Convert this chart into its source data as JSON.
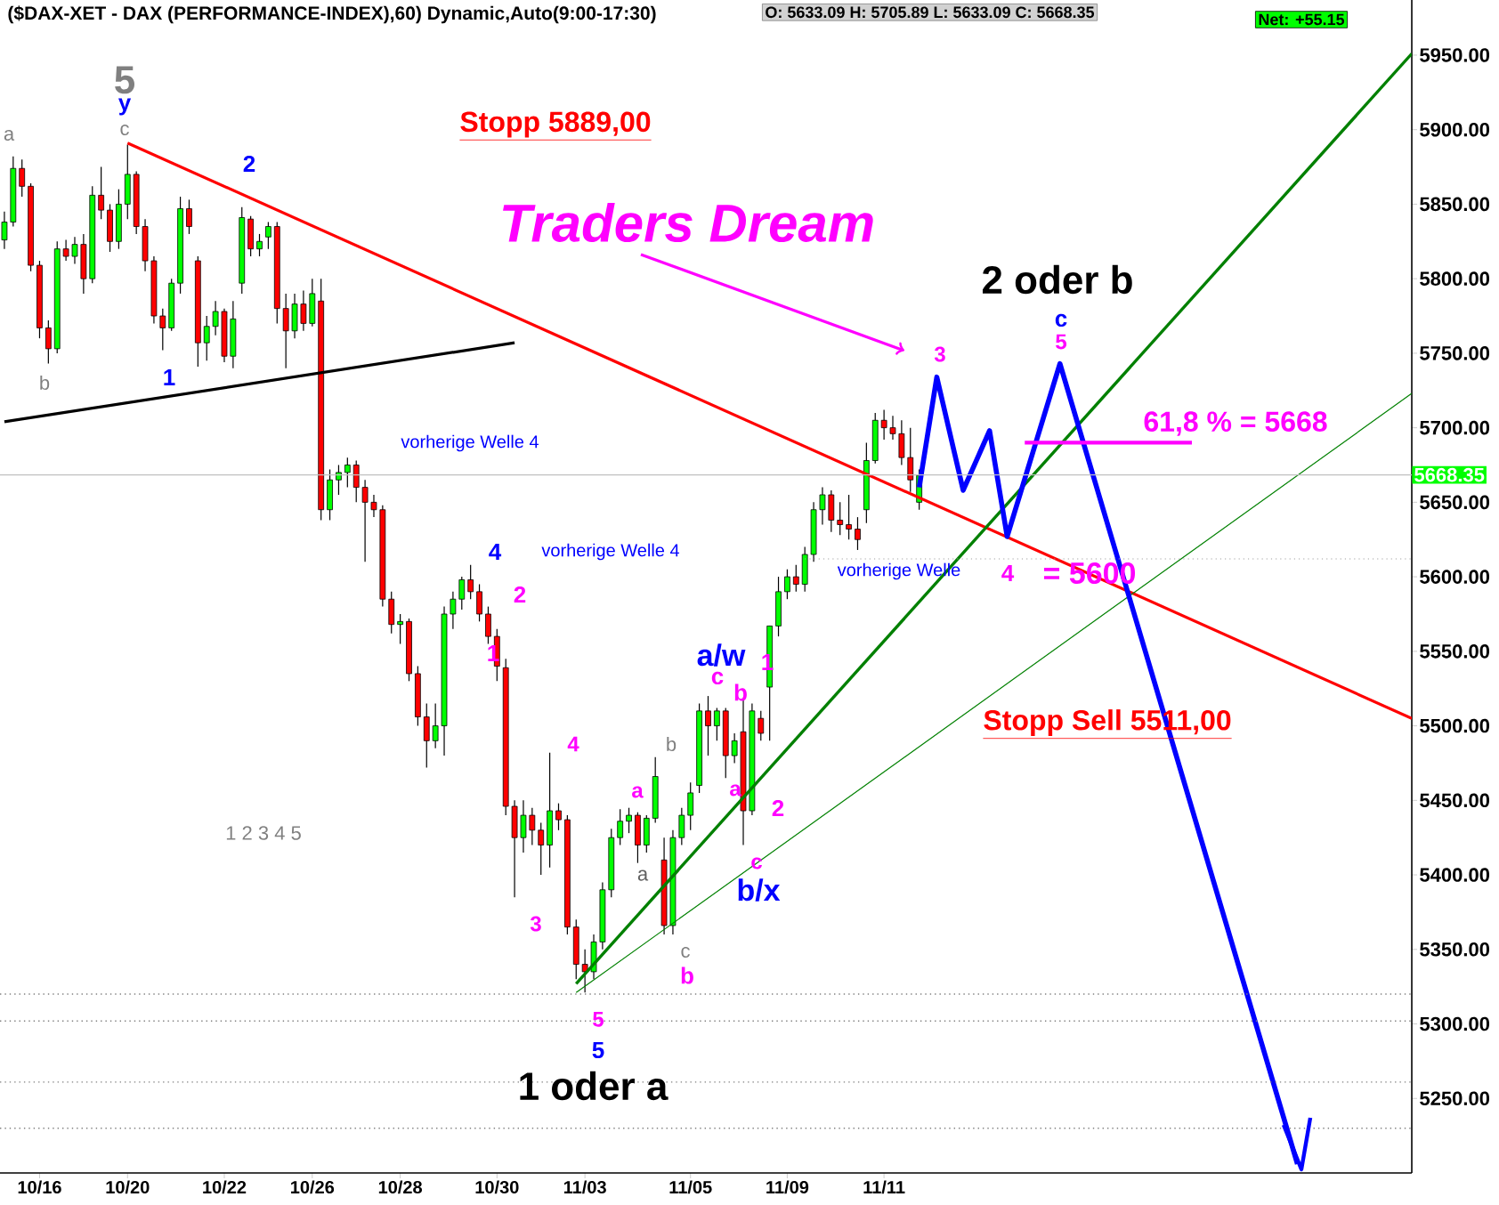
{
  "chart_data": {
    "type": "candlestick",
    "title": "($DAX-XET - DAX (PERFORMANCE-INDEX),60) Dynamic,Auto(9:00-17:30)",
    "subtitle": "O: 5633.09   H: 5705.89   L: 5633.09   C: 5668.35",
    "categories": [
      null,
      null,
      null,
      null,
      "10/16",
      null,
      null,
      null,
      null,
      null,
      null,
      null,
      null,
      null,
      "10/20",
      null,
      null,
      null,
      null,
      null,
      null,
      null,
      null,
      null,
      null,
      "10/22",
      null,
      null,
      null,
      null,
      null,
      null,
      null,
      null,
      null,
      "10/26",
      null,
      null,
      null,
      null,
      null,
      null,
      null,
      null,
      null,
      "10/28",
      null,
      null,
      null,
      null,
      null,
      null,
      null,
      null,
      null,
      null,
      "10/30",
      null,
      null,
      null,
      null,
      null,
      null,
      null,
      null,
      null,
      "11/03",
      null,
      null,
      null,
      null,
      null,
      null,
      null,
      null,
      null,
      null,
      null,
      "11/05",
      null,
      null,
      null,
      null,
      null,
      null,
      null,
      null,
      null,
      null,
      "11/09",
      null,
      null,
      null,
      null,
      null,
      null,
      null,
      null,
      null,
      null,
      "11/11",
      null,
      null,
      null,
      null,
      null,
      null,
      null,
      null,
      null,
      null,
      null,
      null,
      null,
      null,
      null,
      null,
      null,
      null,
      null,
      null,
      null,
      null,
      null,
      null,
      null,
      null,
      null,
      null,
      null,
      null,
      null,
      null,
      null,
      null,
      null,
      null,
      null,
      null,
      null,
      null,
      null,
      null,
      null,
      null,
      null,
      null,
      null,
      null,
      null,
      null,
      null,
      null,
      null,
      null,
      null,
      null,
      null,
      null,
      null,
      null
    ],
    "ohlc": [
      [
        5826,
        5845,
        5820,
        5838
      ],
      [
        5838,
        5882,
        5835,
        5874
      ],
      [
        5874,
        5880,
        5855,
        5862
      ],
      [
        5862,
        5864,
        5805,
        5809
      ],
      [
        5809,
        5812,
        5760,
        5767
      ],
      [
        5767,
        5772,
        5743,
        5753
      ],
      [
        5753,
        5825,
        5750,
        5820
      ],
      [
        5820,
        5826,
        5812,
        5815
      ],
      [
        5815,
        5828,
        5810,
        5823
      ],
      [
        5823,
        5830,
        5790,
        5800
      ],
      [
        5800,
        5862,
        5797,
        5856
      ],
      [
        5856,
        5875,
        5840,
        5846
      ],
      [
        5846,
        5850,
        5818,
        5825
      ],
      [
        5825,
        5860,
        5820,
        5850
      ],
      [
        5850,
        5890,
        5840,
        5870
      ],
      [
        5870,
        5872,
        5830,
        5835
      ],
      [
        5835,
        5840,
        5805,
        5812
      ],
      [
        5812,
        5815,
        5770,
        5775
      ],
      [
        5775,
        5780,
        5752,
        5767
      ],
      [
        5767,
        5800,
        5765,
        5797
      ],
      [
        5797,
        5855,
        5790,
        5847
      ],
      [
        5847,
        5853,
        5830,
        5835
      ],
      [
        5812,
        5815,
        5741,
        5757
      ],
      [
        5757,
        5775,
        5745,
        5768
      ],
      [
        5768,
        5785,
        5762,
        5778
      ],
      [
        5778,
        5780,
        5744,
        5748
      ],
      [
        5748,
        5785,
        5740,
        5773
      ],
      [
        5797,
        5848,
        5790,
        5841
      ],
      [
        5840,
        5842,
        5815,
        5820
      ],
      [
        5820,
        5830,
        5815,
        5825
      ],
      [
        5828,
        5838,
        5820,
        5835
      ],
      [
        5835,
        5838,
        5770,
        5780
      ],
      [
        5780,
        5790,
        5740,
        5765
      ],
      [
        5765,
        5790,
        5760,
        5783
      ],
      [
        5783,
        5792,
        5765,
        5770
      ],
      [
        5770,
        5800,
        5768,
        5790
      ],
      [
        5785,
        5800,
        5638,
        5645
      ],
      [
        5645,
        5672,
        5638,
        5665
      ],
      [
        5665,
        5675,
        5655,
        5670
      ],
      [
        5670,
        5680,
        5660,
        5675
      ],
      [
        5675,
        5678,
        5650,
        5660
      ],
      [
        5660,
        5665,
        5610,
        5650
      ],
      [
        5650,
        5655,
        5640,
        5645
      ],
      [
        5645,
        5648,
        5580,
        5585
      ],
      [
        5585,
        5590,
        5562,
        5568
      ],
      [
        5568,
        5575,
        5555,
        5570
      ],
      [
        5570,
        5572,
        5530,
        5535
      ],
      [
        5535,
        5540,
        5500,
        5506
      ],
      [
        5506,
        5515,
        5472,
        5490
      ],
      [
        5490,
        5515,
        5485,
        5500
      ],
      [
        5500,
        5580,
        5480,
        5575
      ],
      [
        5575,
        5590,
        5565,
        5585
      ],
      [
        5585,
        5600,
        5578,
        5598
      ],
      [
        5598,
        5608,
        5585,
        5590
      ],
      [
        5590,
        5595,
        5570,
        5575
      ],
      [
        5575,
        5580,
        5555,
        5560
      ],
      [
        5560,
        5565,
        5530,
        5540
      ],
      [
        5539,
        5545,
        5440,
        5446
      ],
      [
        5446,
        5450,
        5385,
        5425
      ],
      [
        5425,
        5450,
        5415,
        5440
      ],
      [
        5440,
        5445,
        5420,
        5430
      ],
      [
        5430,
        5435,
        5400,
        5420
      ],
      [
        5420,
        5482,
        5405,
        5443
      ],
      [
        5443,
        5448,
        5430,
        5437
      ],
      [
        5437,
        5440,
        5360,
        5365
      ],
      [
        5365,
        5370,
        5330,
        5340
      ],
      [
        5340,
        5350,
        5321,
        5335
      ],
      [
        5335,
        5360,
        5330,
        5355
      ],
      [
        5355,
        5395,
        5350,
        5390
      ],
      [
        5390,
        5431,
        5385,
        5425
      ],
      [
        5425,
        5444,
        5420,
        5436
      ],
      [
        5436,
        5445,
        5428,
        5440
      ],
      [
        5440,
        5442,
        5408,
        5420
      ],
      [
        5420,
        5440,
        5415,
        5438
      ],
      [
        5438,
        5479,
        5435,
        5466
      ],
      [
        5410,
        5425,
        5360,
        5366
      ],
      [
        5366,
        5430,
        5360,
        5425
      ],
      [
        5425,
        5445,
        5420,
        5440
      ],
      [
        5440,
        5462,
        5430,
        5455
      ],
      [
        5460,
        5515,
        5455,
        5510
      ],
      [
        5510,
        5520,
        5480,
        5500
      ],
      [
        5500,
        5512,
        5490,
        5510
      ],
      [
        5510,
        5512,
        5465,
        5480
      ],
      [
        5480,
        5495,
        5475,
        5490
      ],
      [
        5496,
        5517,
        5420,
        5443
      ],
      [
        5443,
        5515,
        5440,
        5510
      ],
      [
        5505,
        5510,
        5490,
        5495
      ],
      [
        5526,
        5567,
        5490,
        5567
      ],
      [
        5567,
        5600,
        5560,
        5590
      ],
      [
        5590,
        5605,
        5585,
        5600
      ],
      [
        5600,
        5608,
        5590,
        5595
      ],
      [
        5595,
        5620,
        5590,
        5615
      ],
      [
        5615,
        5650,
        5610,
        5645
      ],
      [
        5645,
        5660,
        5635,
        5655
      ],
      [
        5655,
        5658,
        5630,
        5638
      ],
      [
        5638,
        5650,
        5628,
        5635
      ],
      [
        5635,
        5655,
        5625,
        5632
      ],
      [
        5632,
        5640,
        5618,
        5625
      ],
      [
        5645,
        5690,
        5636,
        5678
      ],
      [
        5678,
        5710,
        5676,
        5705
      ],
      [
        5705,
        5712,
        5692,
        5700
      ],
      [
        5700,
        5708,
        5692,
        5696
      ],
      [
        5696,
        5705,
        5675,
        5680
      ],
      [
        5680,
        5700,
        5657,
        5665
      ],
      [
        5650,
        5672,
        5645,
        5668
      ],
      null,
      null,
      null,
      null,
      null,
      null,
      null,
      null,
      null,
      null,
      null,
      null,
      null,
      null,
      null,
      null,
      null,
      null,
      null,
      null,
      null,
      null,
      null,
      null,
      null,
      null,
      null,
      null,
      null,
      null,
      null,
      null,
      null,
      null,
      null,
      null,
      null,
      null,
      null,
      null,
      null,
      null,
      null,
      null,
      null,
      null,
      null,
      null,
      null,
      null,
      null,
      null,
      null,
      null,
      null,
      null
    ],
    "series": [
      {
        "type": "line",
        "color": "#ff0000",
        "values": [
          null,
          null,
          null,
          null,
          null,
          null,
          null,
          null,
          null,
          null,
          null,
          null,
          null,
          null,
          5891,
          null,
          null,
          null,
          null,
          null,
          null,
          null,
          null,
          null,
          null,
          null,
          null,
          null,
          null,
          null,
          null,
          null,
          null,
          null,
          null,
          null,
          null,
          null,
          null,
          null,
          null,
          null,
          null,
          null,
          null,
          null,
          null,
          null,
          null,
          null,
          null,
          null,
          null,
          null,
          null,
          null,
          null,
          null,
          null,
          null,
          null,
          null,
          null,
          null,
          null,
          null,
          null,
          null,
          null,
          null,
          null,
          null,
          null,
          null,
          null,
          null,
          null,
          null,
          null,
          null,
          null,
          null,
          null,
          null,
          null,
          null,
          null,
          null,
          null,
          null,
          null,
          null,
          null,
          null,
          null,
          null,
          null,
          null,
          null,
          null,
          null,
          null,
          null,
          null,
          null,
          null,
          null,
          null,
          null,
          null,
          null,
          null,
          null,
          null,
          null,
          null,
          null,
          null,
          null,
          null,
          null,
          null,
          null,
          null,
          null,
          null,
          null,
          null,
          null,
          null,
          null,
          null,
          null,
          null,
          null,
          null,
          null,
          null,
          null,
          null,
          null,
          null,
          null,
          null,
          null,
          null,
          null,
          null,
          null,
          null,
          null,
          null,
          null,
          null,
          null,
          null,
          null,
          null,
          null,
          null,
          5505
        ]
      },
      {
        "type": "line",
        "color": "#000000",
        "values": [
          5704,
          null,
          null,
          null,
          null,
          null,
          null,
          null,
          null,
          null,
          null,
          null,
          null,
          null,
          null,
          null,
          null,
          null,
          null,
          null,
          null,
          null,
          null,
          null,
          null,
          null,
          null,
          null,
          null,
          null,
          null,
          null,
          null,
          null,
          null,
          null,
          null,
          null,
          null,
          null,
          null,
          null,
          null,
          null,
          null,
          null,
          null,
          null,
          null,
          null,
          null,
          null,
          null,
          null,
          null,
          null,
          null,
          null,
          5757,
          null,
          null,
          null,
          null,
          null,
          null,
          null,
          null,
          null,
          null,
          null,
          null,
          null,
          null,
          null,
          null,
          null,
          null,
          null,
          null,
          null,
          null,
          null,
          null,
          null,
          null,
          null,
          null,
          null,
          null,
          null,
          null,
          null,
          null,
          null,
          null,
          null,
          null,
          null,
          null,
          null,
          null,
          null,
          null,
          null,
          null,
          null,
          null,
          null,
          null,
          null,
          null,
          null,
          null,
          null,
          null,
          null,
          null,
          null,
          null,
          null,
          null,
          null,
          null,
          null,
          null,
          null,
          null,
          null,
          null,
          null,
          null,
          null,
          null,
          null,
          null,
          null,
          null,
          null,
          null,
          null,
          null,
          null,
          null,
          null,
          null,
          null,
          null,
          null,
          null,
          null,
          null,
          null,
          null,
          null,
          null,
          null,
          null,
          null,
          null,
          null,
          null
        ]
      },
      {
        "type": "line",
        "color": "#008000",
        "values": [
          null,
          null,
          null,
          null,
          null,
          null,
          null,
          null,
          null,
          null,
          null,
          null,
          null,
          null,
          null,
          null,
          null,
          null,
          null,
          null,
          null,
          null,
          null,
          null,
          null,
          null,
          null,
          null,
          null,
          null,
          null,
          null,
          null,
          null,
          null,
          null,
          null,
          null,
          null,
          null,
          null,
          null,
          null,
          null,
          null,
          null,
          null,
          null,
          null,
          null,
          null,
          null,
          null,
          null,
          null,
          null,
          null,
          null,
          null,
          null,
          null,
          null,
          null,
          null,
          null,
          5327,
          null,
          null,
          null,
          null,
          null,
          null,
          null,
          null,
          null,
          null,
          null,
          null,
          null,
          null,
          null,
          null,
          null,
          null,
          null,
          null,
          null,
          null,
          null,
          null,
          null,
          null,
          null,
          null,
          null,
          null,
          null,
          null,
          null,
          null,
          null,
          null,
          null,
          null,
          null,
          null,
          null,
          null,
          null,
          null,
          null,
          null,
          null,
          null,
          null,
          null,
          null,
          null,
          null,
          null,
          null,
          null,
          null,
          null,
          null,
          null,
          null,
          null,
          null,
          null,
          null,
          null,
          null,
          null,
          null,
          null,
          null,
          null,
          null,
          null,
          null,
          null,
          null,
          null,
          null,
          null,
          null,
          null,
          null,
          null,
          null,
          null,
          null,
          null,
          null,
          null,
          null,
          null,
          null,
          null,
          5951
        ]
      },
      {
        "type": "line",
        "color": "#008000",
        "values": [
          null,
          null,
          null,
          null,
          null,
          null,
          null,
          null,
          null,
          null,
          null,
          null,
          null,
          null,
          null,
          null,
          null,
          null,
          null,
          null,
          null,
          null,
          null,
          null,
          null,
          null,
          null,
          null,
          null,
          null,
          null,
          null,
          null,
          null,
          null,
          null,
          null,
          null,
          null,
          null,
          null,
          null,
          null,
          null,
          null,
          null,
          null,
          null,
          null,
          null,
          null,
          null,
          null,
          null,
          null,
          null,
          null,
          null,
          null,
          null,
          null,
          null,
          null,
          null,
          null,
          5321,
          null,
          null,
          null,
          null,
          null,
          null,
          null,
          null,
          null,
          null,
          null,
          null,
          null,
          null,
          null,
          null,
          null,
          null,
          null,
          null,
          null,
          null,
          null,
          null,
          null,
          null,
          null,
          null,
          null,
          null,
          null,
          null,
          null,
          null,
          null,
          null,
          null,
          null,
          null,
          null,
          null,
          null,
          null,
          null,
          null,
          null,
          null,
          null,
          null,
          null,
          null,
          null,
          null,
          null,
          null,
          null,
          null,
          null,
          null,
          null,
          null,
          null,
          null,
          null,
          null,
          null,
          null,
          null,
          null,
          null,
          null,
          null,
          null,
          null,
          null,
          null,
          null,
          null,
          null,
          null,
          null,
          null,
          null,
          null,
          null,
          null,
          null,
          null,
          null,
          null,
          null,
          null,
          null,
          null,
          5723
        ]
      },
      {
        "type": "line",
        "color": "#0000ff",
        "values": [
          null,
          null,
          null,
          null,
          null,
          null,
          null,
          null,
          null,
          null,
          null,
          null,
          null,
          null,
          null,
          null,
          null,
          null,
          null,
          null,
          null,
          null,
          null,
          null,
          null,
          null,
          null,
          null,
          null,
          null,
          null,
          null,
          null,
          null,
          null,
          null,
          null,
          null,
          null,
          null,
          null,
          null,
          null,
          null,
          null,
          null,
          null,
          null,
          null,
          null,
          null,
          null,
          null,
          null,
          null,
          null,
          null,
          null,
          null,
          null,
          null,
          null,
          null,
          null,
          null,
          null,
          null,
          null,
          null,
          null,
          null,
          null,
          null,
          null,
          null,
          null,
          null,
          null,
          null,
          null,
          null,
          null,
          null,
          null,
          null,
          null,
          null,
          null,
          null,
          null,
          null,
          null,
          null,
          null,
          null,
          null,
          null,
          null,
          null,
          null,
          null,
          null,
          null,
          null,
          5660,
          null,
          5734,
          null,
          null,
          5658,
          null,
          null,
          5698,
          null,
          5627,
          null,
          null,
          null,
          null,
          null,
          5743,
          null,
          null,
          null,
          null,
          null,
          null,
          null,
          null,
          null,
          null,
          null,
          null,
          null,
          null,
          null,
          null,
          null,
          null,
          null,
          null,
          null,
          null,
          null,
          null,
          null,
          null,
          5206,
          null,
          null,
          null,
          null,
          null,
          null,
          null,
          null,
          null,
          null,
          null,
          null,
          null
        ]
      },
      {
        "type": "line",
        "color": "#ff00ff",
        "values": [
          null,
          null,
          null,
          null,
          null,
          null,
          null,
          null,
          null,
          null,
          null,
          null,
          null,
          null,
          null,
          null,
          null,
          null,
          null,
          null,
          null,
          null,
          null,
          null,
          null,
          null,
          null,
          null,
          null,
          null,
          null,
          null,
          null,
          null,
          null,
          null,
          null,
          null,
          null,
          null,
          null,
          null,
          null,
          null,
          null,
          null,
          null,
          null,
          null,
          null,
          null,
          null,
          null,
          null,
          null,
          null,
          null,
          null,
          null,
          null,
          null,
          null,
          null,
          null,
          null,
          null,
          null,
          null,
          null,
          null,
          null,
          null,
          null,
          null,
          null,
          null,
          null,
          null,
          null,
          null,
          null,
          null,
          null,
          null,
          null,
          null,
          null,
          null,
          null,
          null,
          null,
          null,
          null,
          null,
          null,
          null,
          null,
          null,
          null,
          null,
          null,
          null,
          null,
          null,
          null,
          null,
          null,
          null,
          null,
          null,
          null,
          null,
          null,
          null,
          null,
          null,
          5690,
          null,
          null,
          null,
          null,
          null,
          null,
          null,
          null,
          null,
          null,
          null,
          null,
          null,
          null,
          null,
          null,
          null,
          null,
          5690,
          null,
          null,
          null,
          null,
          null,
          null,
          null,
          null,
          null,
          null,
          null,
          null,
          null,
          null,
          null,
          null,
          null,
          null,
          null,
          null,
          null,
          null,
          null,
          null,
          null
        ]
      },
      {
        "type": "line",
        "color": "#a0a0a0",
        "line_style": "dotted",
        "values": [
          null,
          null,
          null,
          null,
          null,
          null,
          null,
          null,
          null,
          null,
          null,
          null,
          null,
          null,
          null,
          null,
          null,
          null,
          null,
          null,
          null,
          null,
          null,
          null,
          null,
          null,
          null,
          null,
          null,
          null,
          null,
          null,
          null,
          null,
          null,
          null,
          null,
          null,
          null,
          null,
          null,
          null,
          null,
          null,
          null,
          null,
          null,
          null,
          null,
          null,
          null,
          null,
          null,
          null,
          null,
          null,
          null,
          null,
          null,
          null,
          null,
          null,
          null,
          null,
          null,
          null,
          null,
          null,
          null,
          null,
          null,
          null,
          null,
          null,
          null,
          null,
          null,
          null,
          null,
          null,
          null,
          null,
          null,
          null,
          null,
          null,
          null,
          null,
          null,
          null,
          null,
          5612,
          null,
          null,
          null,
          null,
          null,
          null,
          null,
          null,
          null,
          null,
          null,
          null,
          null,
          null,
          null,
          null,
          null,
          null,
          null,
          null,
          null,
          null,
          null,
          null,
          null,
          null,
          null,
          null,
          null,
          null,
          null,
          null,
          null,
          null,
          null,
          null,
          null,
          null,
          null,
          null,
          null,
          null,
          null,
          null,
          null,
          null,
          null,
          null,
          null,
          null,
          null,
          null,
          null,
          null,
          null,
          null,
          null,
          null,
          null,
          null,
          null,
          null,
          null,
          null,
          null,
          null,
          null,
          null,
          5612
        ]
      }
    ],
    "ref_lines": [
      {
        "axis": "y",
        "value": 5668.35,
        "label": "5668.35",
        "color": "#c0c0c0"
      },
      {
        "axis": "y",
        "value": 5320,
        "color": "#808080",
        "line_style": "dotted"
      },
      {
        "axis": "y",
        "value": 5302,
        "color": "#808080",
        "line_style": "dotted"
      },
      {
        "axis": "y",
        "value": 5261,
        "color": "#808080",
        "line_style": "dotted"
      },
      {
        "axis": "y",
        "value": 5230,
        "color": "#808080",
        "line_style": "dotted"
      }
    ],
    "annotations": [
      "5",
      "y",
      "c",
      "a",
      "b",
      "1",
      "2",
      "Stopp 5889,00",
      "2 oder b",
      "3",
      "c",
      "5",
      "61,8 % = 5668",
      "vorherige  Welle 4",
      "4",
      "vorherige  Welle 4",
      "2",
      "1",
      "vorherige  Welle",
      "4",
      "= 5600",
      "a/w",
      "c",
      "b",
      "1",
      "Stopp Sell 5511,00",
      "4",
      "b",
      "a",
      "a",
      {
        "text": "a",
        "y": 5408
      },
      "2",
      "c",
      "b/x",
      "3",
      "c",
      "b",
      {
        "text": "5",
        "y": 5321
      },
      "5",
      "1 oder a",
      "Traders Dream",
      "1 2 3 4 5",
      "Net: +55.15"
    ],
    "ylim": [
      5200,
      5987
    ],
    "yticks": [
      {
        "value": 5250,
        "label": "5250.00"
      },
      {
        "value": 5300,
        "label": "5300.00"
      },
      {
        "value": 5350,
        "label": "5350.00"
      },
      {
        "value": 5400,
        "label": "5400.00"
      },
      {
        "value": 5450,
        "label": "5450.00"
      },
      {
        "value": 5500,
        "label": "5500.00"
      },
      {
        "value": 5550,
        "label": "5550.00"
      },
      {
        "value": 5600,
        "label": "5600.00"
      },
      {
        "value": 5650,
        "label": "5650.00"
      },
      {
        "value": 5700,
        "label": "5700.00"
      },
      {
        "value": 5750,
        "label": "5750.00"
      },
      {
        "value": 5800,
        "label": "5800.00"
      },
      {
        "value": 5850,
        "label": "5850.00"
      },
      {
        "value": 5900,
        "label": "5900.00"
      },
      {
        "value": 5950,
        "label": "5950.00"
      }
    ]
  }
}
